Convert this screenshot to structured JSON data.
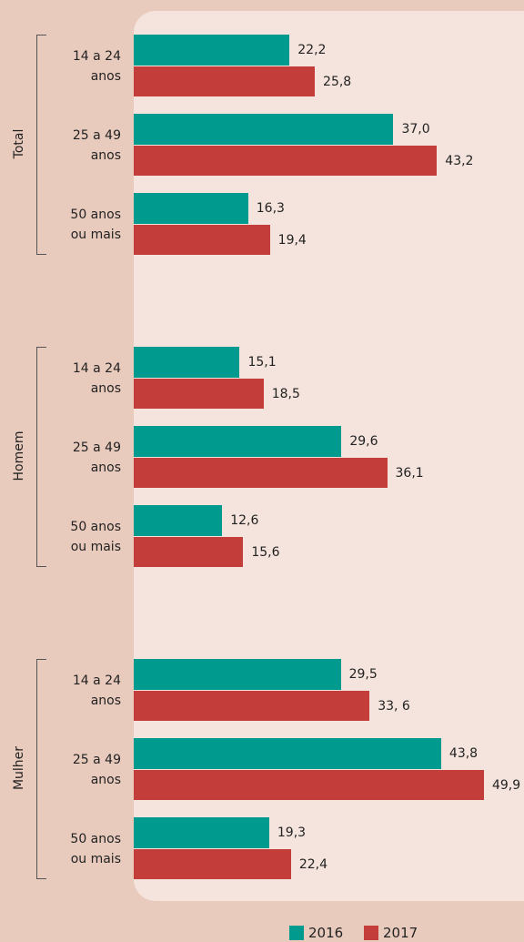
{
  "chart_data": {
    "type": "bar",
    "groups": [
      "Total",
      "Homem",
      "Mulher"
    ],
    "categories": [
      "14 a 24\nanos",
      "25 a 49\nanos",
      "50 anos\nou mais",
      "14 a 24\nanos",
      "25 a 49\nanos",
      "50 anos\nou mais",
      "14 a 24\nanos",
      "25 a 49\nanos",
      "50 anos\nou mais"
    ],
    "series": [
      {
        "name": "2016",
        "color": "#009a8e",
        "values": [
          22.2,
          37.0,
          16.3,
          15.1,
          29.6,
          12.6,
          29.5,
          43.8,
          19.3
        ],
        "value_labels": [
          "22,2",
          "37,0",
          "16,3",
          "15,1",
          "29,6",
          "12,6",
          "29,5",
          "43,8",
          "19,3"
        ]
      },
      {
        "name": "2017",
        "color": "#c33e3b",
        "values": [
          25.8,
          43.2,
          19.4,
          18.5,
          36.1,
          15.6,
          33.6,
          49.9,
          22.4
        ],
        "value_labels": [
          "25,8",
          "43,2",
          "19,4",
          "18,5",
          "36,1",
          "15,6",
          "33, 6",
          "49,9",
          "22,4"
        ]
      }
    ]
  }
}
